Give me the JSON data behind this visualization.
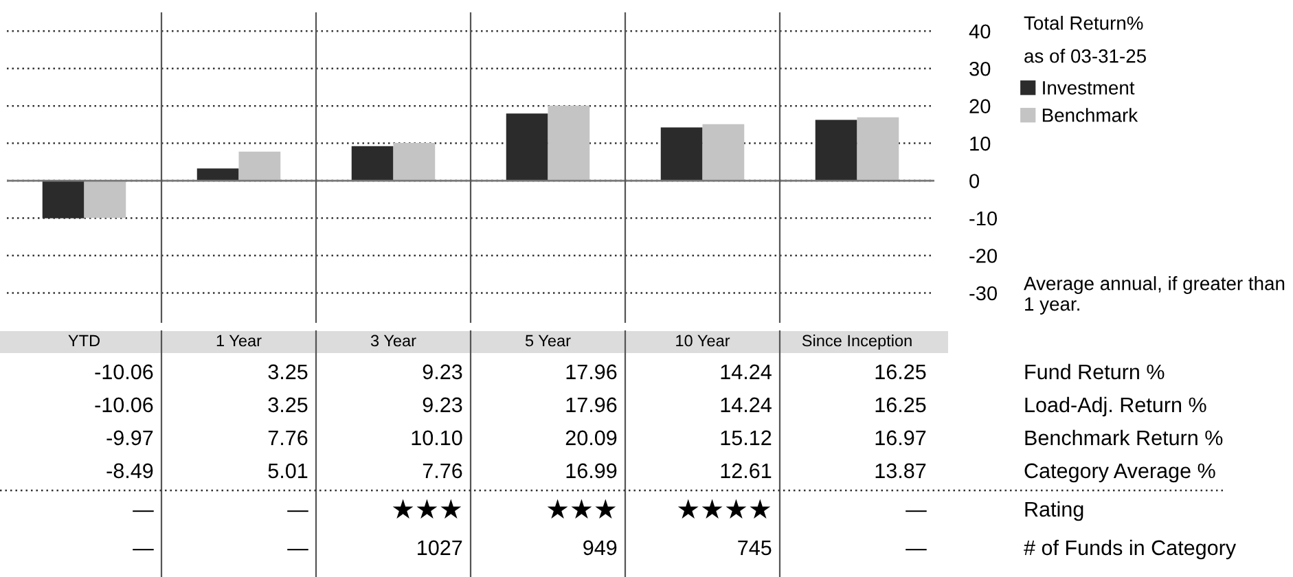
{
  "chart_data": {
    "type": "bar",
    "categories": [
      "YTD",
      "1 Year",
      "3 Year",
      "5 Year",
      "10 Year",
      "Since Inception"
    ],
    "series": [
      {
        "name": "Investment",
        "color": "#2b2b2b",
        "values": [
          -10.06,
          3.25,
          9.23,
          17.96,
          14.24,
          16.25
        ],
        "value_labels": [
          "-10.06",
          "3.25",
          "9.23",
          "17.96",
          "14.24",
          "16.25"
        ]
      },
      {
        "name": "Benchmark",
        "color": "#c4c4c4",
        "values": [
          -9.97,
          7.76,
          10.1,
          20.09,
          15.12,
          16.97
        ],
        "value_labels": [
          "-9.97",
          "7.76",
          "10.10",
          "20.09",
          "15.12",
          "16.97"
        ]
      }
    ],
    "legend_title": "Total Return%",
    "ylim": [
      -38,
      45
    ],
    "yticks": [
      -30,
      -20,
      -10,
      0,
      10,
      20,
      30,
      40
    ],
    "grid": "y",
    "legend": "right",
    "annotations": [
      "as of 03-31-25",
      "Average annual, if greater than 1 year.",
      "Fund Return %",
      "Load-Adj. Return %",
      "Benchmark Return %",
      "Category Average %",
      "Rating",
      "# of Funds in Category",
      "-10.06",
      "3.25",
      "9.23",
      "17.96",
      "14.24",
      "16.25",
      "-8.49",
      "5.01",
      "7.76",
      "16.99",
      "12.61",
      "13.87",
      "—",
      "—",
      "★★★",
      "★★★",
      "★★★★",
      "—",
      "—",
      "—",
      "1027",
      "949",
      "745",
      "—"
    ]
  }
}
